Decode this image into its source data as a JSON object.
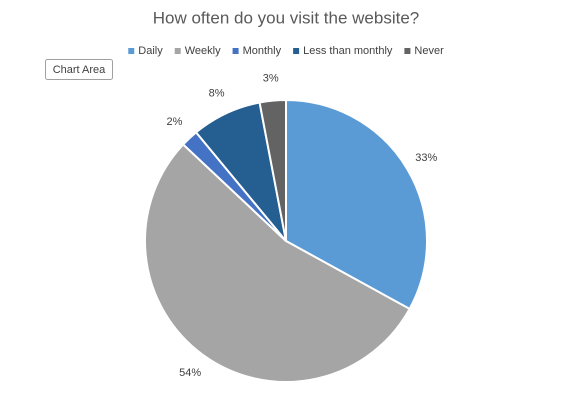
{
  "chart_data": {
    "type": "pie",
    "title": "How often do you visit the website?",
    "categories": [
      "Daily",
      "Weekly",
      "Monthly",
      "Less than monthly",
      "Never"
    ],
    "values": [
      33,
      54,
      2,
      8,
      3
    ],
    "value_labels": [
      "33%",
      "54%",
      "2%",
      "8%",
      "3%"
    ],
    "colors": [
      "#5b9bd5",
      "#a5a5a5",
      "#4472c4",
      "#255e91",
      "#636363"
    ],
    "legend": "top"
  },
  "tooltip": "Chart Area"
}
